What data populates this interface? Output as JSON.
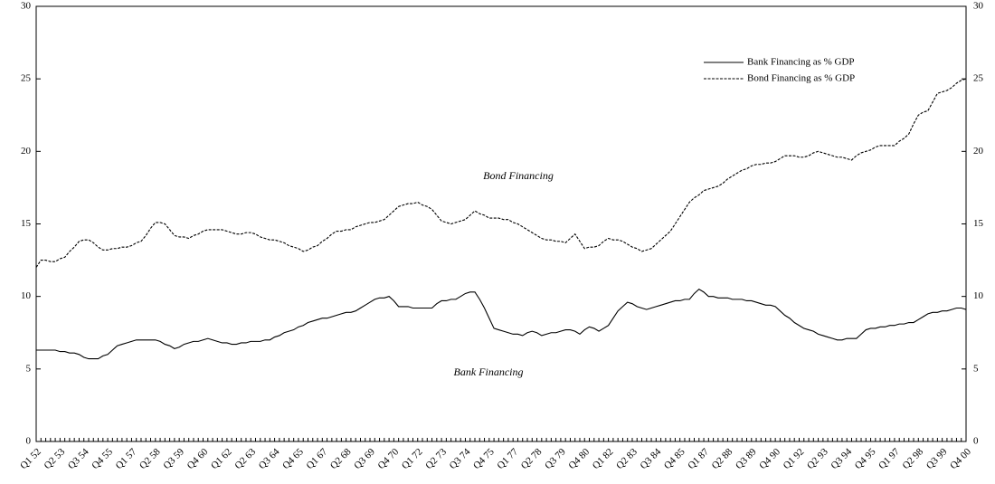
{
  "chart_data": {
    "type": "line",
    "annotations": [
      "Bond Financing",
      "Bank Financing"
    ],
    "categories": [
      "Q1 52",
      null,
      null,
      null,
      null,
      "Q2 53",
      null,
      null,
      null,
      null,
      "Q3 54",
      null,
      null,
      null,
      null,
      "Q4 55",
      null,
      null,
      null,
      null,
      "Q1 57",
      null,
      null,
      null,
      null,
      "Q2 58",
      null,
      null,
      null,
      null,
      "Q3 59",
      null,
      null,
      null,
      null,
      "Q4 60",
      null,
      null,
      null,
      null,
      "Q1 62",
      null,
      null,
      null,
      null,
      "Q2 63",
      null,
      null,
      null,
      null,
      "Q3 64",
      null,
      null,
      null,
      null,
      "Q4 65",
      null,
      null,
      null,
      null,
      "Q1 67",
      null,
      null,
      null,
      null,
      "Q2 68",
      null,
      null,
      null,
      null,
      "Q3 69",
      null,
      null,
      null,
      null,
      "Q4 70",
      null,
      null,
      null,
      null,
      "Q1 72",
      null,
      null,
      null,
      null,
      "Q2 73",
      null,
      null,
      null,
      null,
      "Q3 74",
      null,
      null,
      null,
      null,
      "Q4 75",
      null,
      null,
      null,
      null,
      "Q1 77",
      null,
      null,
      null,
      null,
      "Q2 78",
      null,
      null,
      null,
      null,
      "Q3 79",
      null,
      null,
      null,
      null,
      "Q4 80",
      null,
      null,
      null,
      null,
      "Q1 82",
      null,
      null,
      null,
      null,
      "Q2 83",
      null,
      null,
      null,
      null,
      "Q3 84",
      null,
      null,
      null,
      null,
      "Q4 85",
      null,
      null,
      null,
      null,
      "Q1 87",
      null,
      null,
      null,
      null,
      "Q2 88",
      null,
      null,
      null,
      null,
      "Q3 89",
      null,
      null,
      null,
      null,
      "Q4 90",
      null,
      null,
      null,
      null,
      "Q1 92",
      null,
      null,
      null,
      null,
      "Q2 93",
      null,
      null,
      null,
      null,
      "Q3 94",
      null,
      null,
      null,
      null,
      "Q4 95",
      null,
      null,
      null,
      null,
      "Q1 97",
      null,
      null,
      null,
      null,
      "Q2 98",
      null,
      null,
      null,
      null,
      "Q3 99",
      null,
      null,
      null,
      null,
      "Q4 00"
    ],
    "series": [
      {
        "name": "Bank Financing as % GDP",
        "color": "#000000",
        "linestyle": "solid",
        "values": [
          6.3,
          6.3,
          6.3,
          6.3,
          6.3,
          6.2,
          6.2,
          6.1,
          6.1,
          6.0,
          5.8,
          5.7,
          5.7,
          5.7,
          5.9,
          6.0,
          6.3,
          6.6,
          6.7,
          6.8,
          6.9,
          7.0,
          7.0,
          7.0,
          7.0,
          7.0,
          6.9,
          6.7,
          6.6,
          6.4,
          6.5,
          6.7,
          6.8,
          6.9,
          6.9,
          7.0,
          7.1,
          7.0,
          6.9,
          6.8,
          6.8,
          6.7,
          6.7,
          6.8,
          6.8,
          6.9,
          6.9,
          6.9,
          7.0,
          7.0,
          7.2,
          7.3,
          7.5,
          7.6,
          7.7,
          7.9,
          8.0,
          8.2,
          8.3,
          8.4,
          8.5,
          8.5,
          8.6,
          8.7,
          8.8,
          8.9,
          8.9,
          9.0,
          9.2,
          9.4,
          9.6,
          9.8,
          9.9,
          9.9,
          10.0,
          9.7,
          9.3,
          9.3,
          9.3,
          9.2,
          9.2,
          9.2,
          9.2,
          9.2,
          9.5,
          9.7,
          9.7,
          9.8,
          9.8,
          10.0,
          10.2,
          10.3,
          10.3,
          9.8,
          9.2,
          8.5,
          7.8,
          7.7,
          7.6,
          7.5,
          7.4,
          7.4,
          7.3,
          7.5,
          7.6,
          7.5,
          7.3,
          7.4,
          7.5,
          7.5,
          7.6,
          7.7,
          7.7,
          7.6,
          7.4,
          7.7,
          7.9,
          7.8,
          7.6,
          7.8,
          8.0,
          8.5,
          9.0,
          9.3,
          9.6,
          9.5,
          9.3,
          9.2,
          9.1,
          9.2,
          9.3,
          9.4,
          9.5,
          9.6,
          9.7,
          9.7,
          9.8,
          9.8,
          10.2,
          10.5,
          10.3,
          10.0,
          10.0,
          9.9,
          9.9,
          9.9,
          9.8,
          9.8,
          9.8,
          9.7,
          9.7,
          9.6,
          9.5,
          9.4,
          9.4,
          9.3,
          9.0,
          8.7,
          8.5,
          8.2,
          8.0,
          7.8,
          7.7,
          7.6,
          7.4,
          7.3,
          7.2,
          7.1,
          7.0,
          7.0,
          7.1,
          7.1,
          7.1,
          7.4,
          7.7,
          7.8,
          7.8,
          7.9,
          7.9,
          8.0,
          8.0,
          8.1,
          8.1,
          8.2,
          8.2,
          8.4,
          8.6,
          8.8,
          8.9,
          8.9,
          9.0,
          9.0,
          9.1,
          9.2,
          9.2,
          9.1
        ]
      },
      {
        "name": "Bond Financing as % GDP",
        "color": "#000000",
        "linestyle": "dashed",
        "values": [
          12.0,
          12.5,
          12.5,
          12.4,
          12.4,
          12.6,
          12.7,
          13.1,
          13.4,
          13.8,
          13.9,
          13.9,
          13.7,
          13.4,
          13.2,
          13.2,
          13.3,
          13.3,
          13.4,
          13.4,
          13.5,
          13.7,
          13.8,
          14.2,
          14.7,
          15.1,
          15.1,
          15.0,
          14.6,
          14.2,
          14.1,
          14.1,
          14.0,
          14.2,
          14.3,
          14.5,
          14.6,
          14.6,
          14.6,
          14.6,
          14.5,
          14.4,
          14.3,
          14.3,
          14.4,
          14.4,
          14.3,
          14.1,
          14.0,
          13.9,
          13.9,
          13.8,
          13.7,
          13.5,
          13.4,
          13.3,
          13.1,
          13.2,
          13.4,
          13.5,
          13.8,
          14.0,
          14.3,
          14.5,
          14.5,
          14.6,
          14.6,
          14.8,
          14.9,
          15.0,
          15.1,
          15.1,
          15.2,
          15.3,
          15.6,
          15.9,
          16.2,
          16.3,
          16.4,
          16.4,
          16.5,
          16.3,
          16.2,
          16.0,
          15.6,
          15.2,
          15.1,
          15.0,
          15.1,
          15.2,
          15.3,
          15.6,
          15.9,
          15.7,
          15.6,
          15.4,
          15.4,
          15.4,
          15.3,
          15.3,
          15.1,
          15.0,
          14.8,
          14.6,
          14.4,
          14.2,
          14.0,
          13.9,
          13.9,
          13.8,
          13.8,
          13.7,
          14.0,
          14.3,
          13.8,
          13.3,
          13.4,
          13.4,
          13.5,
          13.8,
          14.0,
          13.9,
          13.9,
          13.8,
          13.6,
          13.4,
          13.3,
          13.1,
          13.2,
          13.3,
          13.6,
          13.9,
          14.2,
          14.5,
          15.0,
          15.5,
          16.0,
          16.5,
          16.8,
          17.0,
          17.3,
          17.4,
          17.5,
          17.6,
          17.8,
          18.1,
          18.3,
          18.5,
          18.7,
          18.8,
          19.0,
          19.1,
          19.1,
          19.2,
          19.2,
          19.3,
          19.5,
          19.7,
          19.7,
          19.7,
          19.6,
          19.6,
          19.7,
          19.9,
          20.0,
          19.9,
          19.8,
          19.7,
          19.6,
          19.6,
          19.5,
          19.4,
          19.7,
          19.9,
          20.0,
          20.1,
          20.3,
          20.4,
          20.4,
          20.4,
          20.4,
          20.7,
          20.9,
          21.2,
          21.9,
          22.5,
          22.7,
          22.8,
          23.4,
          24.0,
          24.1,
          24.2,
          24.4,
          24.7,
          24.9,
          25.0
        ]
      }
    ],
    "ylim": [
      0,
      30
    ],
    "yticks": [
      0,
      5,
      10,
      15,
      20,
      25,
      30
    ],
    "y2lim": [
      0,
      30
    ],
    "y2ticks": [
      0,
      5,
      10,
      15,
      20,
      25,
      30
    ],
    "legend": "upper right",
    "grid": false
  }
}
